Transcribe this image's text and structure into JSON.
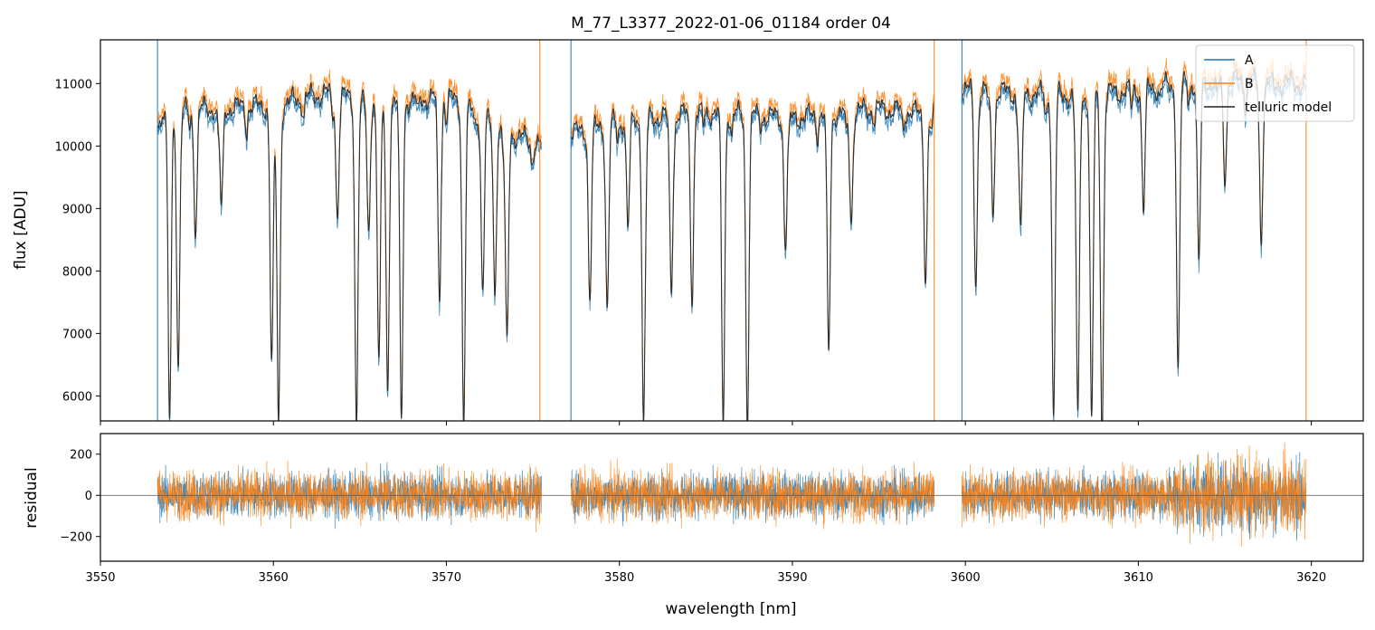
{
  "chart_data": [
    {
      "type": "line",
      "panel": "top",
      "title": "M_77_L3377_2022-01-06_01184  order 04",
      "xlabel": "",
      "ylabel": "flux [ADU]",
      "xlim": [
        3550,
        3623
      ],
      "ylim": [
        5600,
        11700
      ],
      "yticks": [
        6000,
        7000,
        8000,
        9000,
        10000,
        11000
      ],
      "ytick_labels": [
        "6000",
        "7000",
        "8000",
        "9000",
        "10000",
        "11000"
      ],
      "xticks": [
        3550,
        3560,
        3570,
        3580,
        3590,
        3600,
        3610,
        3620
      ],
      "legend": {
        "placement": "top-right",
        "entries": [
          "A",
          "B",
          "telluric model"
        ]
      },
      "segments": [
        [
          3553.3,
          3575.5
        ],
        [
          3577.2,
          3598.2
        ],
        [
          3599.8,
          3619.7
        ]
      ],
      "spikes": [
        3553.3,
        3575.4,
        3577.2,
        3598.2,
        3599.8,
        3619.7
      ],
      "continuum": {
        "x": [
          3553.3,
          3556,
          3560,
          3563,
          3566,
          3570,
          3573,
          3575.5,
          3577.2,
          3580,
          3585,
          3590,
          3595,
          3598.2,
          3599.8,
          3603,
          3607,
          3611,
          3615,
          3619.7
        ],
        "y": [
          10500,
          10600,
          10650,
          10850,
          10700,
          10800,
          10300,
          10000,
          10200,
          10400,
          10550,
          10450,
          10600,
          10500,
          10900,
          10850,
          10800,
          10950,
          11050,
          11000
        ]
      },
      "absorption_lines": [
        {
          "x": 3554.0,
          "depth": 5600
        },
        {
          "x": 3554.5,
          "depth": 6500
        },
        {
          "x": 3555.5,
          "depth": 8700
        },
        {
          "x": 3557.0,
          "depth": 9000
        },
        {
          "x": 3559.9,
          "depth": 6500
        },
        {
          "x": 3560.3,
          "depth": 5600
        },
        {
          "x": 3563.7,
          "depth": 8900
        },
        {
          "x": 3564.8,
          "depth": 5600
        },
        {
          "x": 3565.5,
          "depth": 8600
        },
        {
          "x": 3566.1,
          "depth": 6500
        },
        {
          "x": 3566.6,
          "depth": 6200
        },
        {
          "x": 3567.4,
          "depth": 5600
        },
        {
          "x": 3569.6,
          "depth": 7600
        },
        {
          "x": 3571.0,
          "depth": 5600
        },
        {
          "x": 3572.1,
          "depth": 7700
        },
        {
          "x": 3572.8,
          "depth": 7700
        },
        {
          "x": 3573.5,
          "depth": 6800
        },
        {
          "x": 3578.3,
          "depth": 7700
        },
        {
          "x": 3579.3,
          "depth": 7400
        },
        {
          "x": 3580.5,
          "depth": 8700
        },
        {
          "x": 3581.4,
          "depth": 5600
        },
        {
          "x": 3583.0,
          "depth": 7700
        },
        {
          "x": 3584.2,
          "depth": 7600
        },
        {
          "x": 3586.0,
          "depth": 5600
        },
        {
          "x": 3587.4,
          "depth": 5600
        },
        {
          "x": 3589.6,
          "depth": 8400
        },
        {
          "x": 3592.1,
          "depth": 6700
        },
        {
          "x": 3593.4,
          "depth": 8800
        },
        {
          "x": 3597.7,
          "depth": 7900
        },
        {
          "x": 3600.6,
          "depth": 7800
        },
        {
          "x": 3601.6,
          "depth": 9000
        },
        {
          "x": 3603.2,
          "depth": 8600
        },
        {
          "x": 3605.1,
          "depth": 5600
        },
        {
          "x": 3606.5,
          "depth": 5600
        },
        {
          "x": 3607.3,
          "depth": 5600
        },
        {
          "x": 3607.9,
          "depth": 5600
        },
        {
          "x": 3610.3,
          "depth": 9000
        },
        {
          "x": 3612.3,
          "depth": 6400
        },
        {
          "x": 3613.5,
          "depth": 8100
        },
        {
          "x": 3615.0,
          "depth": 9500
        },
        {
          "x": 3617.1,
          "depth": 8500
        }
      ],
      "series": [
        {
          "name": "A",
          "color": "#1f77b4"
        },
        {
          "name": "B",
          "color": "#ff7f0e"
        },
        {
          "name": "telluric model",
          "color": "#222222"
        }
      ]
    },
    {
      "type": "line",
      "panel": "bottom",
      "xlabel": "wavelength [nm]",
      "ylabel": "residual",
      "xlim": [
        3550,
        3623
      ],
      "ylim": [
        -320,
        300
      ],
      "yticks": [
        -200,
        0,
        200
      ],
      "ytick_labels": [
        "−200",
        "0",
        "200"
      ],
      "xticks": [
        3550,
        3560,
        3570,
        3580,
        3590,
        3600,
        3610,
        3620
      ],
      "xtick_labels": [
        "3550",
        "3560",
        "3570",
        "3580",
        "3590",
        "3600",
        "3610",
        "3620"
      ],
      "residual_amplitude": [
        100,
        110
      ],
      "series": [
        {
          "name": "A",
          "color": "#1f77b4"
        },
        {
          "name": "B",
          "color": "#ff7f0e"
        }
      ]
    }
  ]
}
